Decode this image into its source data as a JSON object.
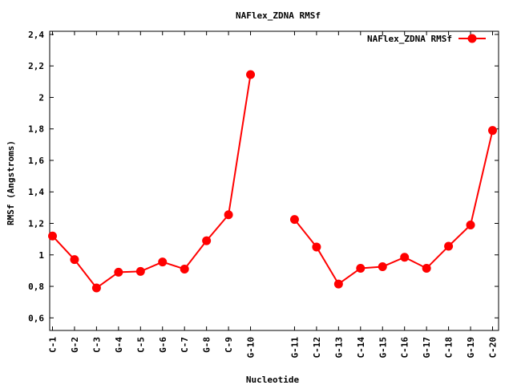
{
  "chart_data": {
    "type": "line",
    "title": "NAFlex_ZDNA RMSf",
    "xlabel": "Nucleotide",
    "ylabel": "RMSf (Angstroms)",
    "ylim": [
      0.52,
      2.42
    ],
    "yticks": [
      0.6,
      0.8,
      1,
      1.2,
      1.4,
      1.6,
      1.8,
      2,
      2.2,
      2.4
    ],
    "ytick_labels": [
      "0,6",
      "0,8",
      "1",
      "1,2",
      "1,4",
      "1,6",
      "1,8",
      "2",
      "2,2",
      "2,4"
    ],
    "categories": [
      "C-1",
      "G-2",
      "C-3",
      "G-4",
      "C-5",
      "G-6",
      "C-7",
      "G-8",
      "C-9",
      "G-10",
      "",
      "G-11",
      "C-12",
      "G-13",
      "C-14",
      "G-15",
      "C-16",
      "G-17",
      "C-18",
      "G-19",
      "C-20"
    ],
    "grid": false,
    "legend_position": "top-right",
    "series": [
      {
        "name": "NAFlex_ZDNA RMSf",
        "color": "#ff0000",
        "values": [
          1.12,
          0.97,
          0.79,
          0.89,
          0.895,
          0.955,
          0.91,
          1.09,
          1.255,
          2.145,
          null,
          1.225,
          1.05,
          0.815,
          0.915,
          0.925,
          0.985,
          0.915,
          1.055,
          1.19,
          1.79
        ]
      }
    ]
  }
}
